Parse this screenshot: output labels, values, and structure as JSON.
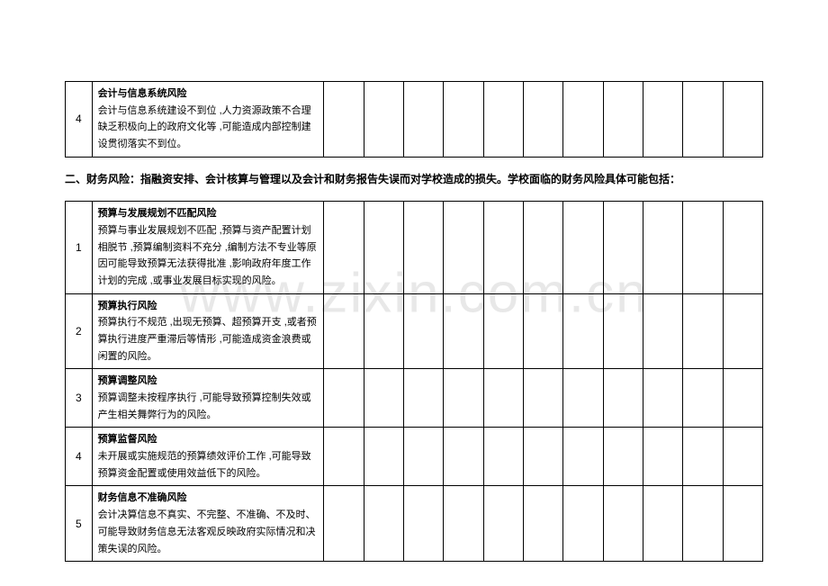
{
  "watermark": "www.zixin.com.cn",
  "blank_cols": 11,
  "section1": {
    "row": {
      "num": "4",
      "title": "会计与信息系统风险",
      "body": "会计与信息系统建设不到位 ,人力资源政策不合理缺乏积极向上的政府文化等 ,可能造成内部控制建设贯彻落实不到位。"
    }
  },
  "section2": {
    "heading": "二、财务风险：指融资安排、会计核算与管理以及会计和财务报告失误而对学校造成的损失。学校面临的财务风险具体可能包括：",
    "rows": [
      {
        "num": "1",
        "title": "预算与发展规划不匹配风险",
        "body": "预算与事业发展规划不匹配 ,预算与资产配置计划相脱节 ,预算编制资料不充分 ,编制方法不专业等原因可能导致预算无法获得批准 ,影响政府年度工作计划的完成 ,或事业发展目标实现的风险。"
      },
      {
        "num": "2",
        "title": "预算执行风险",
        "body": "预算执行不规范 ,出现无预算、超预算开支 ,或者预算执行进度严重滞后等情形 ,可能造成资金浪费或闲置的风险。"
      },
      {
        "num": "3",
        "title": "预算调整风险",
        "body": "预算调整未按程序执行 ,可能导致预算控制失效或产生相关舞弊行为的风险。"
      },
      {
        "num": "4",
        "title": "预算监督风险",
        "body": "未开展或实施规范的预算绩效评价工作 ,可能导致预算资金配置或使用效益低下的风险。"
      },
      {
        "num": "5",
        "title": "财务信息不准确风险",
        "body": "会计决算信息不真实、不完整、不准确、不及时、可能导致财务信息无法客观反映政府实际情况和决策失误的风险。"
      }
    ]
  }
}
